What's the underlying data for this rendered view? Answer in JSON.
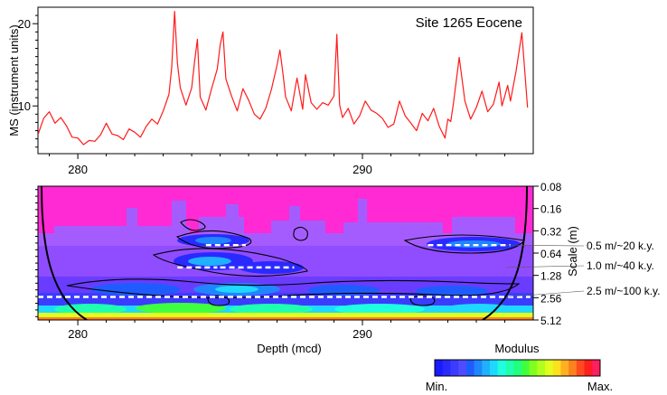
{
  "chart_data": [
    {
      "type": "line",
      "title": "Site 1265 Eocene",
      "xlabel": "",
      "ylabel": "MS (instrument units)",
      "xlim": [
        278.6,
        296.0
      ],
      "ylim": [
        4.2,
        22.0
      ],
      "x_ticks": [
        280,
        290
      ],
      "y_ticks": [
        10,
        20
      ],
      "color": "#ff1a1a",
      "series": [
        {
          "x": [
            278.6,
            278.8,
            279.0,
            279.2,
            279.4,
            279.6,
            279.8,
            280.0,
            280.2,
            280.4,
            280.6,
            280.8,
            281.0,
            281.2,
            281.4,
            281.6,
            281.8,
            282.0,
            282.2,
            282.4,
            282.6,
            282.8,
            283.0,
            283.2,
            283.3,
            283.4,
            283.5,
            283.6,
            283.8,
            284.0,
            284.1,
            284.2,
            284.3,
            284.5,
            284.7,
            284.9,
            285.0,
            285.1,
            285.2,
            285.4,
            285.6,
            285.8,
            286.0,
            286.2,
            286.4,
            286.6,
            286.8,
            287.0,
            287.1,
            287.2,
            287.3,
            287.5,
            287.7,
            287.9,
            288.0,
            288.2,
            288.4,
            288.6,
            288.8,
            289.0,
            289.1,
            289.2,
            289.3,
            289.5,
            289.7,
            289.9,
            290.1,
            290.3,
            290.5,
            290.7,
            290.9,
            291.1,
            291.3,
            291.5,
            291.7,
            291.9,
            292.1,
            292.3,
            292.5,
            292.7,
            292.9,
            293.0,
            293.1,
            293.2,
            293.4,
            293.6,
            293.8,
            294.0,
            294.2,
            294.4,
            294.6,
            294.8,
            294.9,
            295.0,
            295.1,
            295.2,
            295.4,
            295.6,
            295.8
          ],
          "y": [
            6.5,
            8.5,
            9.3,
            7.9,
            8.6,
            7.6,
            6.2,
            6.1,
            5.3,
            5.8,
            5.7,
            6.5,
            7.9,
            6.6,
            6.4,
            5.9,
            7.2,
            6.8,
            6.2,
            7.5,
            8.4,
            7.8,
            9.4,
            11.4,
            14.7,
            21.5,
            15.2,
            12.2,
            10.1,
            12.2,
            15.3,
            18.1,
            11.1,
            9.5,
            12.1,
            14.5,
            17.4,
            19.0,
            13.3,
            11.2,
            9.4,
            12.1,
            10.7,
            9.0,
            8.4,
            9.7,
            12.0,
            15.0,
            16.8,
            14.1,
            11.1,
            9.4,
            13.4,
            9.6,
            13.8,
            10.4,
            9.6,
            10.4,
            10.1,
            11.2,
            18.7,
            10.1,
            8.6,
            9.7,
            7.8,
            8.8,
            10.6,
            9.5,
            9.1,
            8.5,
            7.4,
            7.8,
            10.6,
            8.8,
            7.9,
            7.0,
            9.1,
            8.2,
            9.7,
            7.5,
            6.1,
            8.4,
            8.1,
            10.4,
            15.9,
            10.6,
            8.4,
            9.8,
            11.8,
            9.3,
            10.2,
            12.9,
            10.0,
            11.2,
            12.5,
            10.6,
            14.3,
            18.9,
            9.8
          ]
        }
      ]
    },
    {
      "type": "heatmap",
      "title": "",
      "xlabel": "Depth (mcd)",
      "ylabel": "Scale (m)",
      "xlim": [
        278.6,
        296.0
      ],
      "x_ticks": [
        280,
        290
      ],
      "y_ticks": [
        "0.08",
        "0.16",
        "0.32",
        "0.64",
        "1.28",
        "2.56",
        "5.12"
      ],
      "y_scale": "log2",
      "colorbar": {
        "label": "Modulus",
        "min_label": "Min.",
        "max_label": "Max.",
        "colors": [
          "#1a1aff",
          "#2a2aff",
          "#3c3cff",
          "#4d4dff",
          "#1f5cff",
          "#1f86ff",
          "#1fb0ff",
          "#1fd8ff",
          "#1fffe0",
          "#1fffb0",
          "#1fff80",
          "#40ff40",
          "#80ff1f",
          "#b0ff1f",
          "#e0ff1f",
          "#ffe01f",
          "#ffb01f",
          "#ff801f",
          "#ff4a1f",
          "#ff1f1f",
          "#ff1f5c"
        ]
      },
      "annotations": [
        {
          "label": "0.5 m/~20 k.y."
        },
        {
          "label": "1.0 m/~40 k.y."
        },
        {
          "label": "2.5 m/~100 k.y."
        }
      ],
      "ridges": [
        {
          "scale": 0.5,
          "x": [
            284.5,
            285.9
          ]
        },
        {
          "scale": 0.5,
          "x": [
            292.3,
            295.2
          ]
        },
        {
          "scale": 1.0,
          "x": [
            283.5,
            284.9
          ]
        },
        {
          "scale": 1.0,
          "x": [
            285.0,
            287.6
          ]
        },
        {
          "scale": 2.5,
          "x": [
            278.6,
            295.9
          ]
        }
      ]
    }
  ]
}
